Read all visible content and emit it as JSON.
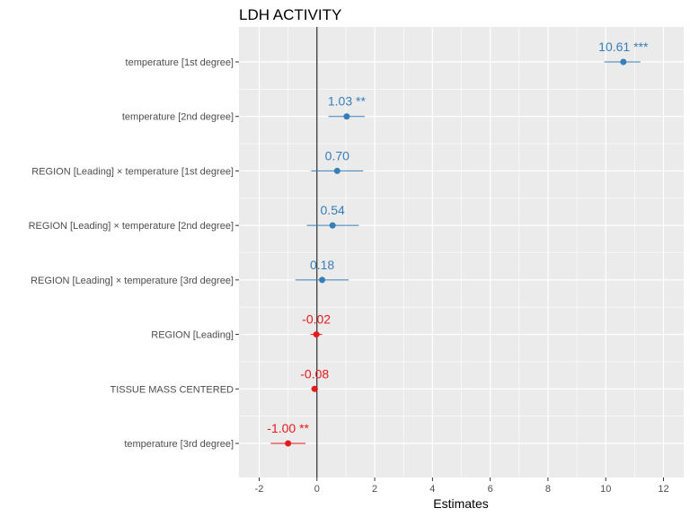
{
  "chart_data": {
    "type": "forest",
    "title": "LDH ACTIVITY",
    "xlabel": "Estimates",
    "xlim": [
      -2.7,
      12.7
    ],
    "x_ticks": [
      "-2",
      "0",
      "2",
      "4",
      "6",
      "8",
      "10",
      "12"
    ],
    "x_tick_values": [
      -2,
      0,
      2,
      4,
      6,
      8,
      10,
      12
    ],
    "reference_line": 0,
    "grid": true,
    "colors": {
      "positive": "#377eb8",
      "negative": "#e41a1c",
      "panel": "#ebebeb",
      "grid": "#ffffff"
    },
    "terms": [
      {
        "label": "temperature [1st degree]",
        "estimate": 10.61,
        "ci": [
          9.95,
          11.2
        ],
        "text": "10.61 ***"
      },
      {
        "label": "temperature [2nd degree]",
        "estimate": 1.03,
        "ci": [
          0.4,
          1.65
        ],
        "text": "1.03 **"
      },
      {
        "label": "REGION [Leading] × temperature [1st degree]",
        "estimate": 0.7,
        "ci": [
          -0.2,
          1.6
        ],
        "text": "0.70"
      },
      {
        "label": "REGION [Leading] × temperature [2nd degree]",
        "estimate": 0.54,
        "ci": [
          -0.35,
          1.45
        ],
        "text": "0.54"
      },
      {
        "label": "REGION [Leading] × temperature [3rd degree]",
        "estimate": 0.18,
        "ci": [
          -0.75,
          1.1
        ],
        "text": "0.18"
      },
      {
        "label": "REGION [Leading]",
        "estimate": -0.02,
        "ci": [
          -0.22,
          0.18
        ],
        "text": "-0.02"
      },
      {
        "label": "TISSUE MASS CENTERED",
        "estimate": -0.08,
        "ci": [
          -0.2,
          0.04
        ],
        "text": "-0.08"
      },
      {
        "label": "temperature [3rd degree]",
        "estimate": -1.0,
        "ci": [
          -1.6,
          -0.4
        ],
        "text": "-1.00 **"
      }
    ]
  }
}
